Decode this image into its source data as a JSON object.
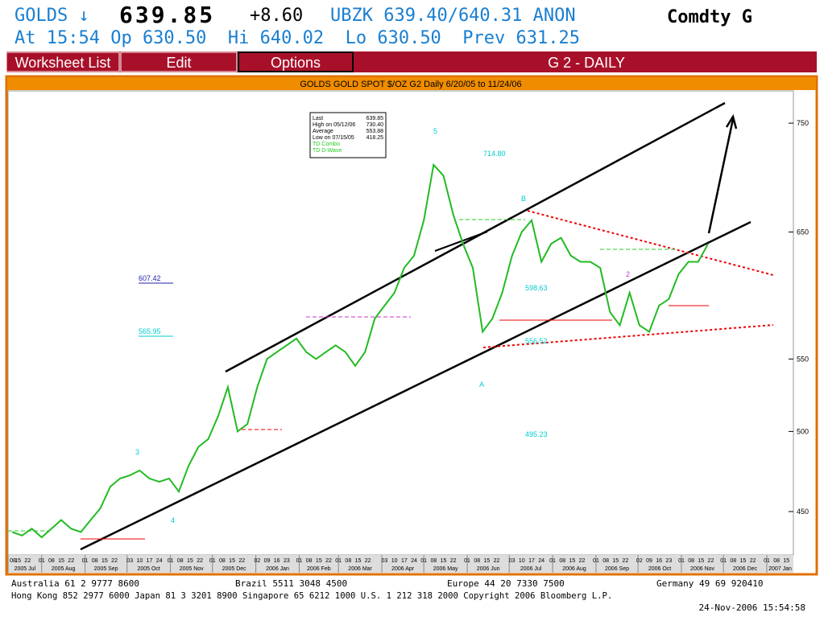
{
  "header": {
    "ticker": "GOLDS ↓",
    "last": "639.85",
    "change": "+8.60",
    "quote": "UBZK 639.40/640.31 ANON",
    "market": "Comdty G",
    "line2": "At 15:54 Op 630.50  Hi 640.02  Lo 630.50  Prev 631.25"
  },
  "menu": [
    "Worksheet List",
    "Edit",
    "Options",
    "G 2 - DAILY"
  ],
  "chart_data": {
    "type": "line",
    "title": "GOLDS GOLD SPOT $/OZ G2 Daily 6/20/05 to 11/24/06",
    "color": "#22bb22",
    "log_scale": true,
    "x": [
      "2005-07-11",
      "2005-07-18",
      "2005-07-25",
      "2005-08-01",
      "2005-08-08",
      "2005-08-15",
      "2005-08-22",
      "2005-08-29",
      "2005-09-05",
      "2005-09-12",
      "2005-09-19",
      "2005-09-26",
      "2005-10-03",
      "2005-10-10",
      "2005-10-17",
      "2005-10-24",
      "2005-10-31",
      "2005-11-07",
      "2005-11-14",
      "2005-11-21",
      "2005-11-28",
      "2005-12-05",
      "2005-12-12",
      "2005-12-19",
      "2005-12-26",
      "2006-01-02",
      "2006-01-09",
      "2006-01-16",
      "2006-01-23",
      "2006-01-30",
      "2006-02-06",
      "2006-02-13",
      "2006-02-20",
      "2006-02-27",
      "2006-03-06",
      "2006-03-13",
      "2006-03-20",
      "2006-03-27",
      "2006-04-03",
      "2006-04-10",
      "2006-04-17",
      "2006-04-24",
      "2006-05-01",
      "2006-05-08",
      "2006-05-15",
      "2006-05-22",
      "2006-05-29",
      "2006-06-05",
      "2006-06-12",
      "2006-06-19",
      "2006-06-26",
      "2006-07-03",
      "2006-07-10",
      "2006-07-17",
      "2006-07-24",
      "2006-07-31",
      "2006-08-07",
      "2006-08-14",
      "2006-08-21",
      "2006-08-28",
      "2006-09-04",
      "2006-09-11",
      "2006-09-18",
      "2006-09-25",
      "2006-10-02",
      "2006-10-09",
      "2006-10-16",
      "2006-10-23",
      "2006-10-30",
      "2006-11-06",
      "2006-11-13",
      "2006-11-20"
    ],
    "values": [
      438,
      436,
      440,
      435,
      440,
      445,
      440,
      438,
      445,
      452,
      465,
      470,
      472,
      475,
      470,
      468,
      470,
      462,
      478,
      490,
      495,
      510,
      530,
      500,
      505,
      530,
      550,
      555,
      560,
      565,
      555,
      550,
      555,
      560,
      555,
      545,
      555,
      580,
      590,
      600,
      620,
      630,
      660,
      710,
      700,
      665,
      640,
      620,
      570,
      580,
      600,
      630,
      650,
      660,
      625,
      640,
      645,
      630,
      625,
      625,
      620,
      585,
      575,
      600,
      575,
      570,
      590,
      595,
      615,
      625,
      625,
      639.85
    ],
    "xlim": [
      "2005-07-08",
      "2007-01-20"
    ],
    "ylim": [
      425,
      785
    ],
    "yticks": [
      450,
      500,
      550,
      650,
      750
    ],
    "x_months": [
      "2005 Jul",
      "2005 Aug",
      "2005 Sep",
      "2005 Oct",
      "2005 Nov",
      "2005 Dec",
      "2006 Jan",
      "2006 Feb",
      "2006 Mar",
      "2006 Apr",
      "2006 May",
      "2006 Jun",
      "2006 Jul",
      "2006 Aug",
      "2006 Sep",
      "2006 Oct",
      "2006 Nov",
      "2006 Dec",
      "2007 Jan"
    ],
    "x_days": [
      [
        "08",
        "15",
        "22"
      ],
      [
        "01",
        "08",
        "15",
        "22"
      ],
      [
        "01",
        "08",
        "15",
        "22"
      ],
      [
        "03",
        "10",
        "17",
        "24"
      ],
      [
        "01",
        "08",
        "15",
        "22"
      ],
      [
        "01",
        "08",
        "15",
        "22"
      ],
      [
        "02",
        "09",
        "16",
        "23"
      ],
      [
        "01",
        "08",
        "15",
        "22"
      ],
      [
        "01",
        "08",
        "15",
        "22"
      ],
      [
        "03",
        "10",
        "17",
        "24"
      ],
      [
        "01",
        "08",
        "15",
        "22"
      ],
      [
        "01",
        "08",
        "15",
        "22"
      ],
      [
        "03",
        "10",
        "17",
        "24"
      ],
      [
        "01",
        "08",
        "15",
        "22"
      ],
      [
        "01",
        "08",
        "15",
        "22"
      ],
      [
        "02",
        "09",
        "16",
        "23"
      ],
      [
        "01",
        "08",
        "15",
        "22"
      ],
      [
        "01",
        "08",
        "15",
        "22"
      ],
      [
        "01",
        "08",
        "15"
      ]
    ],
    "legend_box": [
      [
        "Last",
        "639.85"
      ],
      [
        "High on  05/12/06",
        "730.40"
      ],
      [
        "Average",
        "553.88"
      ],
      [
        "Low on  07/15/05",
        "418.25"
      ]
    ],
    "legend_items": [
      "TD Combo",
      "TD D-Wave"
    ],
    "annotations": [
      "714.80",
      "607.42",
      "565.95",
      "598.63",
      "556.52",
      "495.23",
      "A",
      "B",
      "5",
      "4",
      "3",
      "2"
    ]
  },
  "footer": {
    "l1": [
      "Australia 61 2 9777 8600",
      "Brazil 5511 3048 4500",
      "Europe 44 20 7330 7500",
      "Germany 49 69 920410"
    ],
    "l2": "Hong Kong 852 2977 6000 Japan 81 3 3201 8900 Singapore 65 6212 1000 U.S. 1 212 318 2000 Copyright 2006 Bloomberg L.P.",
    "l3": "24-Nov-2006 15:54:58"
  }
}
